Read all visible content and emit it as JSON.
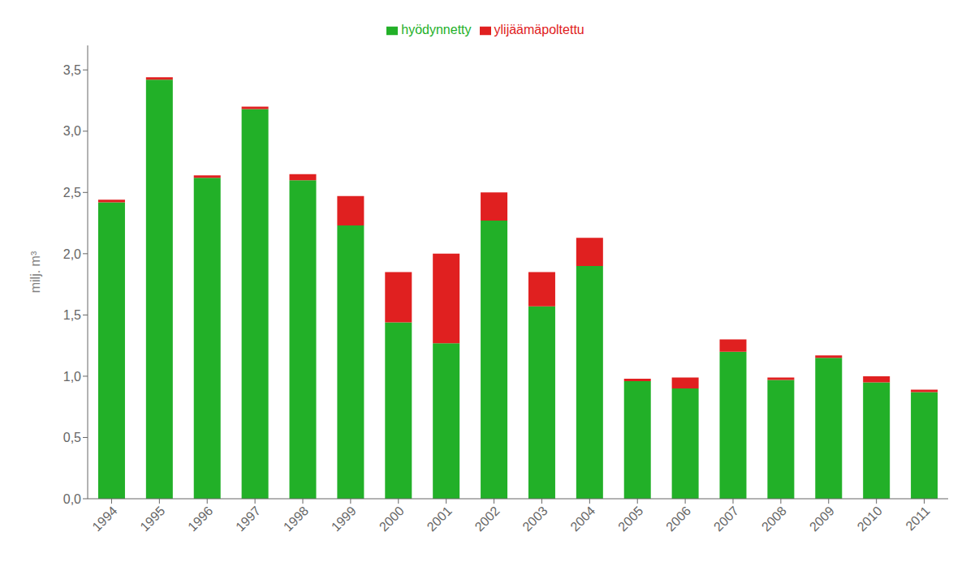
{
  "chart_data": {
    "type": "bar",
    "stacked": true,
    "categories": [
      "1994",
      "1995",
      "1996",
      "1997",
      "1998",
      "1999",
      "2000",
      "2001",
      "2002",
      "2003",
      "2004",
      "2005",
      "2006",
      "2007",
      "2008",
      "2009",
      "2010",
      "2011"
    ],
    "series": [
      {
        "name": "hyödynnetty",
        "color": "#22b028",
        "values": [
          2.42,
          3.42,
          2.62,
          3.18,
          2.6,
          2.23,
          1.44,
          1.27,
          2.27,
          1.57,
          1.9,
          0.96,
          0.9,
          1.2,
          0.97,
          1.15,
          0.95,
          0.87
        ]
      },
      {
        "name": "ylijäämäpoltettu",
        "color": "#e02020",
        "values": [
          0.02,
          0.02,
          0.02,
          0.02,
          0.05,
          0.24,
          0.41,
          0.73,
          0.23,
          0.28,
          0.23,
          0.02,
          0.09,
          0.1,
          0.02,
          0.02,
          0.05,
          0.02
        ]
      }
    ],
    "ylabel": "milj. m³",
    "ylim": [
      0,
      3.7
    ],
    "yticks": [
      {
        "value": 0.0,
        "label": "0,0"
      },
      {
        "value": 0.5,
        "label": "0,5"
      },
      {
        "value": 1.0,
        "label": "1,0"
      },
      {
        "value": 1.5,
        "label": "1,5"
      },
      {
        "value": 2.0,
        "label": "2,0"
      },
      {
        "value": 2.5,
        "label": "2,5"
      },
      {
        "value": 3.0,
        "label": "3,0"
      },
      {
        "value": 3.5,
        "label": "3,5"
      }
    ],
    "grid": false,
    "legend": "top"
  }
}
